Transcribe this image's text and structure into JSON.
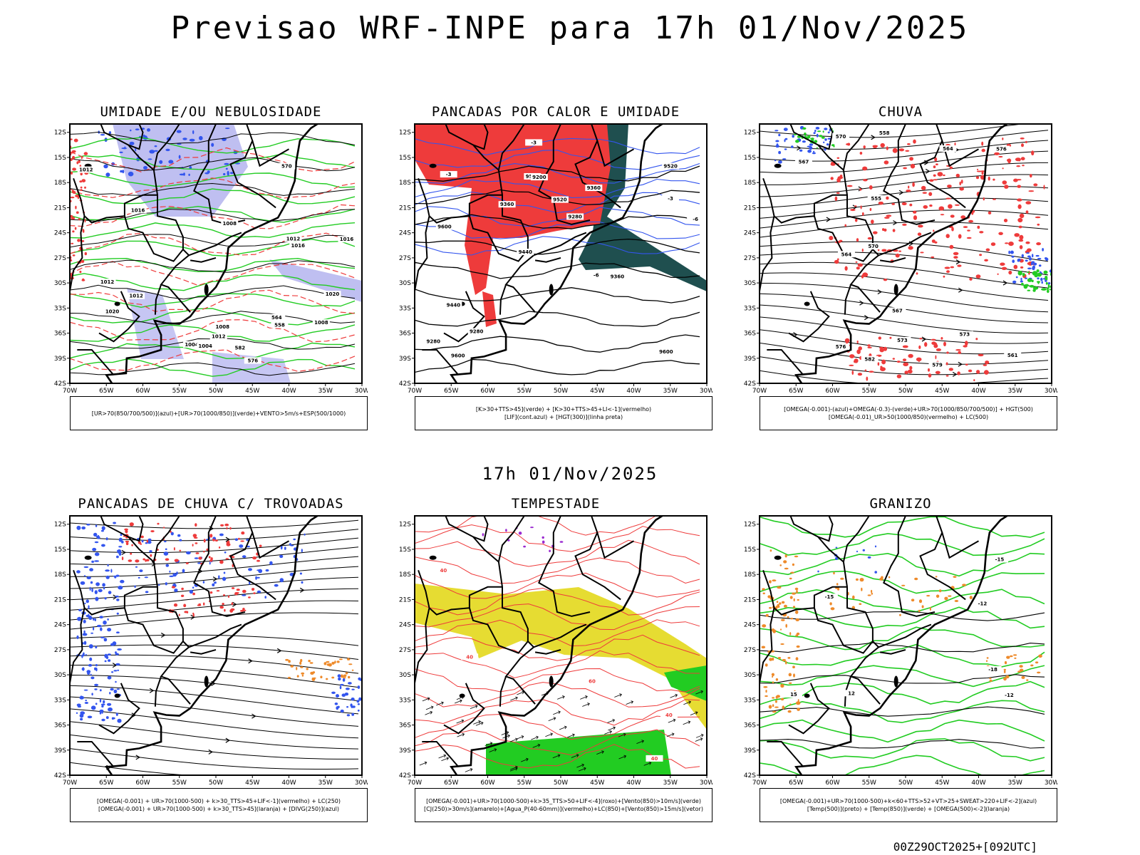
{
  "main_title": "Previsao WRF-INPE  para 17h 01/Nov/2025",
  "mid_title": "17h 01/Nov/2025",
  "footer": "00Z29OCT2025+[092UTC]",
  "axes": {
    "lat_labels": [
      "12S",
      "15S",
      "18S",
      "21S",
      "24S",
      "27S",
      "30S",
      "33S",
      "36S",
      "39S",
      "42S"
    ],
    "lon_labels": [
      "70W",
      "65W",
      "60W",
      "55W",
      "50W",
      "45W",
      "40W",
      "35W",
      "30W"
    ]
  },
  "colors": {
    "red": "#ee3b3b",
    "green": "#22cc22",
    "blue": "#3355ee",
    "lavender": "#b8b8f0",
    "darkteal": "#1f4f4f",
    "yellow": "#e6dc32",
    "orange": "#ee8a2a",
    "purple": "#9a2ad0"
  },
  "panels": [
    {
      "title": "UMIDADE E/OU NEBULOSIDADE",
      "legend": [
        "[UR>70(850/700/500)](azul)+[UR>70(1000/850)](verde)+VENTO>5m/s+ESP(500/1000)"
      ],
      "contour_labels": [
        "1004",
        "1008",
        "1008",
        "1012",
        "1016",
        "1020",
        "1012",
        "1012",
        "1012",
        "1016",
        "1012",
        "1008",
        "1004",
        "576",
        "570",
        "582",
        "564",
        "558",
        "1020",
        "1016"
      ]
    },
    {
      "title": "PANCADAS POR CALOR E UMIDADE",
      "legend": [
        "[K>30+TTS>45](verde) + [K>30+TTS>45+LI<-1](vermelho)",
        "[LIF](cont.azul) + [HGT(300)](linha preta)"
      ],
      "contour_labels": [
        "9600",
        "9600",
        "9520",
        "9440",
        "9360",
        "9600",
        "9520",
        "9520",
        "9440",
        "9360",
        "9280",
        "9280",
        "9200",
        "9280",
        "9360",
        "-3",
        "-3",
        "-6",
        "-6",
        "-3"
      ]
    },
    {
      "title": "CHUVA",
      "legend": [
        "[OMEGA(-0.001)-(azul)+OMEGA(-0.3)-(verde)+UR>70(1000/850/700/500)] + HGT(500)",
        "[OMEGA(-0.01)_UR>50(1000/850)(vermelho) + LC(500)"
      ],
      "contour_labels": [
        "582",
        "579",
        "576",
        "573",
        "570",
        "567",
        "564",
        "561",
        "558",
        "555",
        "576",
        "573",
        "570",
        "567",
        "564"
      ]
    },
    {
      "title": "PANCADAS DE CHUVA C/ TROVOADAS",
      "legend": [
        "[OMEGA(-0.001) + UR>70(1000-500) + k>30_TTS>45+LIF<-1](vermelho) + LC(250)",
        "[OMEGA(-0.001) + UR>70(1000-500) + k>30_TTS>45](laranja) + [DIVG(250)](azul)"
      ],
      "contour_labels": []
    },
    {
      "title": "TEMPESTADE",
      "legend": [
        "[OMEGA(-0.001)+UR>70(1000-500)+k>35_TTS>50+LIF<-4](roxo)+[Vento(850)>10m/s](verde)",
        "[CJ(250)>30m/s](amarelo)+[Agua_P(40-60mm)](vermelho)+LC(850)+[Vento(850)>15m/s](vetor)"
      ],
      "contour_labels": [
        "40",
        "40",
        "60",
        "40",
        "40"
      ]
    },
    {
      "title": "GRANIZO",
      "legend": [
        "[OMEGA(-0.001)+UR>70(1000-500)+k<60+TTS>52+VT>25+SWEAT>220+LIF<-2](azul)",
        "[Temp(500)](preto) + [Temp(850)](verde) + [OMEGA(500)<-2](laranja)"
      ],
      "contour_labels": [
        "-12",
        "-15",
        "-15",
        "-18",
        "-12",
        "12",
        "15"
      ]
    }
  ]
}
